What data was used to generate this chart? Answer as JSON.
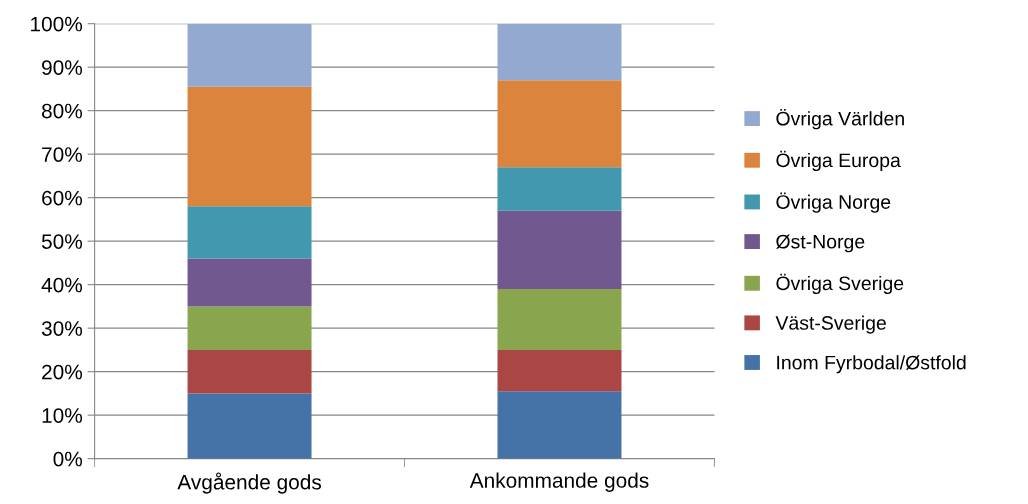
{
  "chart_data": {
    "type": "bar",
    "stacked": true,
    "categories": [
      "Avgående gods",
      "Ankommande gods"
    ],
    "series": [
      {
        "name": "Inom Fyrbodal/Østfold",
        "color": "#4572a7",
        "values": [
          15,
          15.5
        ]
      },
      {
        "name": "Väst-Sverige",
        "color": "#aa4643",
        "values": [
          10,
          9.5
        ]
      },
      {
        "name": "Övriga Sverige",
        "color": "#89a54e",
        "values": [
          10,
          14
        ]
      },
      {
        "name": "Øst-Norge",
        "color": "#71588f",
        "values": [
          11,
          18
        ]
      },
      {
        "name": "Övriga Norge",
        "color": "#4198af",
        "values": [
          12,
          10
        ]
      },
      {
        "name": "Övriga Europa",
        "color": "#db843d",
        "values": [
          27.5,
          20
        ]
      },
      {
        "name": "Övriga Världen",
        "color": "#93a9cf",
        "values": [
          14.5,
          13
        ]
      }
    ],
    "ylim": [
      0,
      100
    ],
    "yticks": [
      {
        "value": 0,
        "label": "0%"
      },
      {
        "value": 10,
        "label": "10%"
      },
      {
        "value": 20,
        "label": "20%"
      },
      {
        "value": 30,
        "label": "30%"
      },
      {
        "value": 40,
        "label": "40%"
      },
      {
        "value": 50,
        "label": "50%"
      },
      {
        "value": 60,
        "label": "60%"
      },
      {
        "value": 70,
        "label": "70%"
      },
      {
        "value": 80,
        "label": "80%"
      },
      {
        "value": 90,
        "label": "90%"
      },
      {
        "value": 100,
        "label": "100%"
      }
    ],
    "grid": "y",
    "legend": "right"
  }
}
